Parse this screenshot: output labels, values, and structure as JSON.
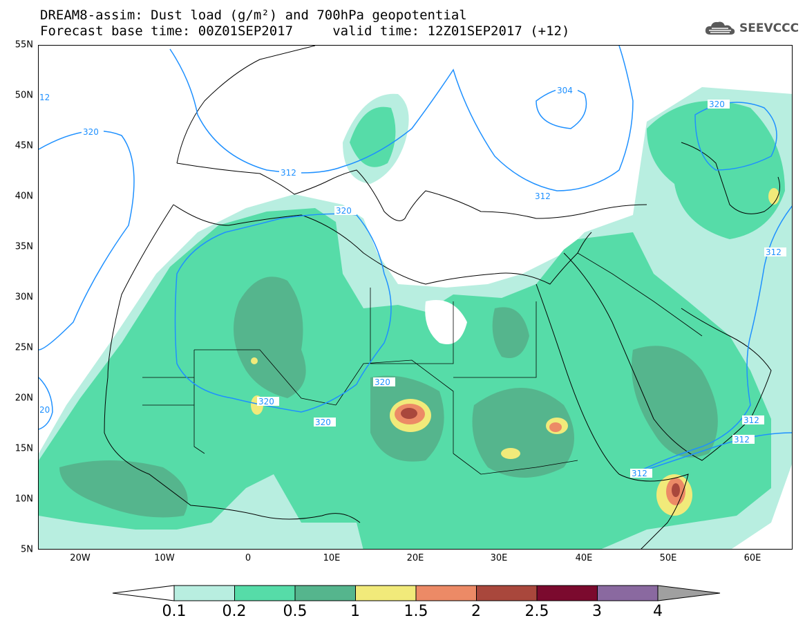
{
  "title": {
    "line1": "DREAM8-assim: Dust load (g/m²) and 700hPa geopotential",
    "line2": "Forecast base time: 00Z01SEP2017     valid time: 12Z01SEP2017 (+12)"
  },
  "logo": {
    "text": "SEEVCCC",
    "icon": "cloud-logo-icon"
  },
  "axes": {
    "lat_labels": [
      "55N",
      "50N",
      "45N",
      "40N",
      "35N",
      "30N",
      "25N",
      "20N",
      "15N",
      "10N",
      "5N"
    ],
    "lon_labels": [
      "20W",
      "10W",
      "0",
      "10E",
      "20E",
      "30E",
      "40E",
      "50E",
      "60E"
    ]
  },
  "contour_labels": [
    "304",
    "312",
    "312",
    "312",
    "312",
    "312",
    "312",
    "320",
    "320",
    "320",
    "320",
    "320",
    "320",
    "12",
    "20"
  ],
  "colorbar": {
    "ticks": [
      "0.1",
      "0.2",
      "0.5",
      "1",
      "1.5",
      "2",
      "2.5",
      "3",
      "4"
    ],
    "colors": [
      "#b8eee0",
      "#56dca8",
      "#55b58d",
      "#f1ea7a",
      "#ec8a66",
      "#a9473c",
      "#7b0a2e",
      "#8a69a0"
    ],
    "under_color": "#ffffff",
    "over_color": "#a0a0a0"
  },
  "colors": {
    "contour": "#1e90ff",
    "coast": "#000000"
  }
}
